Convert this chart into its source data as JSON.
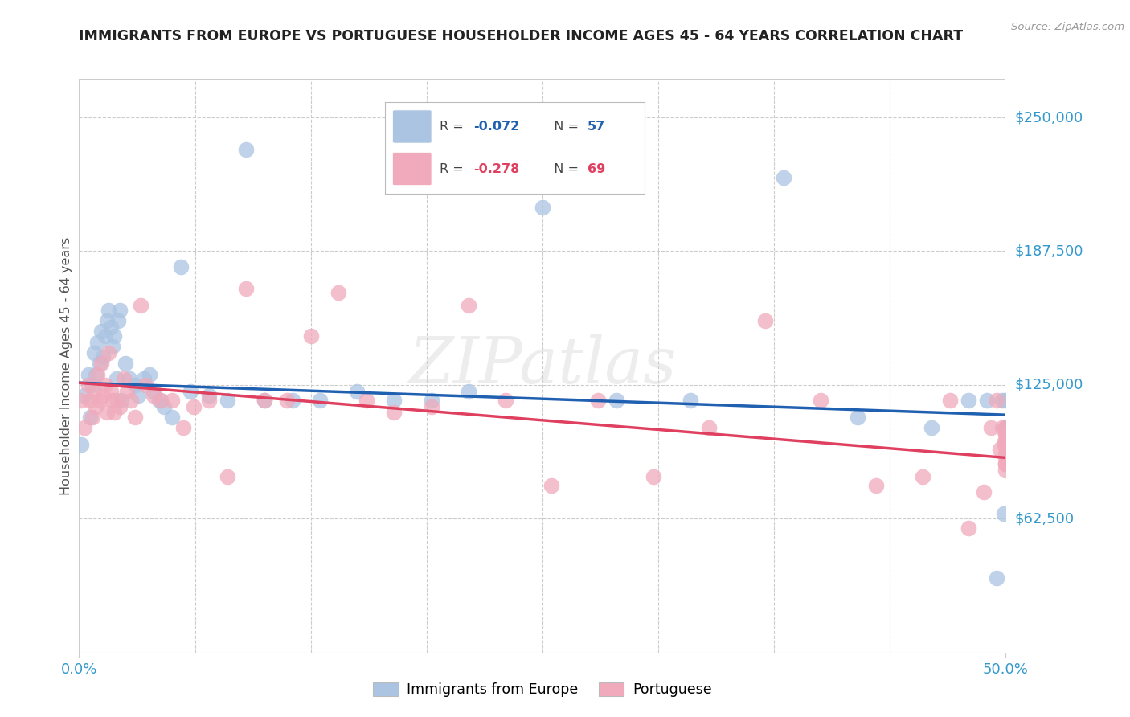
{
  "title": "IMMIGRANTS FROM EUROPE VS PORTUGUESE HOUSEHOLDER INCOME AGES 45 - 64 YEARS CORRELATION CHART",
  "source": "Source: ZipAtlas.com",
  "ylabel": "Householder Income Ages 45 - 64 years",
  "ytick_values": [
    62500,
    125000,
    187500,
    250000
  ],
  "ytick_labels": [
    "$62,500",
    "$125,000",
    "$187,500",
    "$250,000"
  ],
  "ymin": 0,
  "ymax": 268000,
  "xmin": 0.0,
  "xmax": 0.5,
  "blue_color": "#aac4e2",
  "pink_color": "#f0aabb",
  "blue_line_color": "#2060b0",
  "pink_line_color": "#e04060",
  "title_color": "#222222",
  "source_color": "#999999",
  "ylabel_color": "#555555",
  "ytick_color": "#3399cc",
  "xtick_color": "#3399cc",
  "grid_color": "#cccccc",
  "watermark": "ZIPatlas",
  "blue_r": "-0.072",
  "blue_n": "57",
  "pink_r": "-0.278",
  "pink_n": "69",
  "blue_scatter_x": [
    0.001,
    0.003,
    0.005,
    0.006,
    0.007,
    0.008,
    0.009,
    0.01,
    0.011,
    0.012,
    0.013,
    0.014,
    0.015,
    0.016,
    0.017,
    0.018,
    0.019,
    0.02,
    0.021,
    0.022,
    0.023,
    0.025,
    0.027,
    0.03,
    0.032,
    0.035,
    0.038,
    0.04,
    0.043,
    0.046,
    0.05,
    0.055,
    0.06,
    0.07,
    0.08,
    0.09,
    0.1,
    0.115,
    0.13,
    0.15,
    0.17,
    0.19,
    0.21,
    0.25,
    0.29,
    0.33,
    0.38,
    0.42,
    0.46,
    0.48,
    0.49,
    0.495,
    0.498,
    0.499,
    0.5,
    0.5,
    0.5
  ],
  "blue_scatter_y": [
    97000,
    120000,
    130000,
    110000,
    125000,
    140000,
    130000,
    145000,
    135000,
    150000,
    138000,
    148000,
    155000,
    160000,
    152000,
    143000,
    148000,
    128000,
    155000,
    160000,
    118000,
    135000,
    128000,
    125000,
    120000,
    128000,
    130000,
    122000,
    118000,
    115000,
    110000,
    180000,
    122000,
    120000,
    118000,
    235000,
    118000,
    118000,
    118000,
    122000,
    118000,
    118000,
    122000,
    208000,
    118000,
    118000,
    222000,
    110000,
    105000,
    118000,
    118000,
    35000,
    118000,
    65000,
    105000,
    105000,
    118000
  ],
  "pink_scatter_x": [
    0.001,
    0.003,
    0.005,
    0.006,
    0.007,
    0.008,
    0.009,
    0.01,
    0.011,
    0.012,
    0.013,
    0.014,
    0.015,
    0.016,
    0.017,
    0.018,
    0.019,
    0.02,
    0.022,
    0.024,
    0.026,
    0.028,
    0.03,
    0.033,
    0.036,
    0.04,
    0.044,
    0.05,
    0.056,
    0.062,
    0.07,
    0.08,
    0.09,
    0.1,
    0.112,
    0.125,
    0.14,
    0.155,
    0.17,
    0.19,
    0.21,
    0.23,
    0.255,
    0.28,
    0.31,
    0.34,
    0.37,
    0.4,
    0.43,
    0.455,
    0.47,
    0.48,
    0.488,
    0.492,
    0.495,
    0.497,
    0.498,
    0.499,
    0.5,
    0.5,
    0.5,
    0.5,
    0.5,
    0.5,
    0.5,
    0.5,
    0.5,
    0.5,
    0.5
  ],
  "pink_scatter_y": [
    118000,
    105000,
    125000,
    118000,
    110000,
    122000,
    115000,
    130000,
    118000,
    135000,
    120000,
    125000,
    112000,
    140000,
    122000,
    118000,
    112000,
    118000,
    115000,
    128000,
    122000,
    118000,
    110000,
    162000,
    125000,
    120000,
    118000,
    118000,
    105000,
    115000,
    118000,
    82000,
    170000,
    118000,
    118000,
    148000,
    168000,
    118000,
    112000,
    115000,
    162000,
    118000,
    78000,
    118000,
    82000,
    105000,
    155000,
    118000,
    78000,
    82000,
    118000,
    58000,
    75000,
    105000,
    118000,
    95000,
    105000,
    98000,
    105000,
    102000,
    88000,
    102000,
    98000,
    98000,
    96000,
    93000,
    91000,
    88000,
    85000
  ]
}
